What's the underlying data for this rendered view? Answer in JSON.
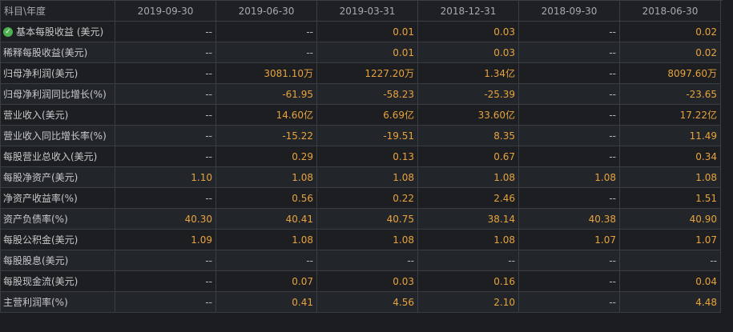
{
  "header": {
    "label": "科目\\年度",
    "periods": [
      "2019-09-30",
      "2019-06-30",
      "2019-03-31",
      "2018-12-31",
      "2018-09-30",
      "2018-06-30"
    ]
  },
  "rows": [
    {
      "label": "基本每股收益 (美元)",
      "checked": true,
      "values": [
        "--",
        "--",
        "0.01",
        "0.03",
        "--",
        "0.02"
      ]
    },
    {
      "label": "稀释每股收益(美元)",
      "values": [
        "--",
        "--",
        "0.01",
        "0.03",
        "--",
        "0.02"
      ]
    },
    {
      "label": "归母净利润(美元)",
      "values": [
        "--",
        "3081.10万",
        "1227.20万",
        "1.34亿",
        "--",
        "8097.60万"
      ]
    },
    {
      "label": "归母净利润同比增长(%)",
      "values": [
        "--",
        "-61.95",
        "-58.23",
        "-25.39",
        "--",
        "-23.65"
      ]
    },
    {
      "label": "营业收入(美元)",
      "values": [
        "--",
        "14.60亿",
        "6.69亿",
        "33.60亿",
        "--",
        "17.22亿"
      ]
    },
    {
      "label": "营业收入同比增长率(%)",
      "values": [
        "--",
        "-15.22",
        "-19.51",
        "8.35",
        "--",
        "11.49"
      ]
    },
    {
      "label": "每股营业总收入(美元)",
      "values": [
        "--",
        "0.29",
        "0.13",
        "0.67",
        "--",
        "0.34"
      ]
    },
    {
      "label": "每股净资产(美元)",
      "values": [
        "1.10",
        "1.08",
        "1.08",
        "1.08",
        "1.08",
        "1.08"
      ]
    },
    {
      "label": "净资产收益率(%)",
      "values": [
        "--",
        "0.56",
        "0.22",
        "2.46",
        "--",
        "1.51"
      ]
    },
    {
      "label": "资产负债率(%)",
      "values": [
        "40.30",
        "40.41",
        "40.75",
        "38.14",
        "40.38",
        "40.90"
      ]
    },
    {
      "label": "每股公积金(美元)",
      "values": [
        "1.09",
        "1.08",
        "1.08",
        "1.08",
        "1.07",
        "1.07"
      ]
    },
    {
      "label": "每股股息(美元)",
      "values": [
        "--",
        "--",
        "--",
        "--",
        "--",
        "--"
      ]
    },
    {
      "label": "每股现金流(美元)",
      "values": [
        "--",
        "0.07",
        "0.03",
        "0.16",
        "--",
        "0.04"
      ]
    },
    {
      "label": "主营利润率(%)",
      "values": [
        "--",
        "0.41",
        "4.56",
        "2.10",
        "--",
        "4.48"
      ]
    }
  ],
  "colors": {
    "value": "#e8a33c",
    "dash": "#b9bbbe",
    "check": "#4caf50"
  },
  "icons": {
    "checked": "check-circle-icon"
  }
}
